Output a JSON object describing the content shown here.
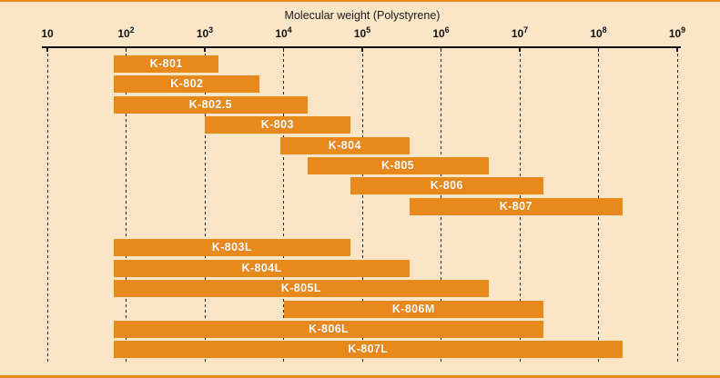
{
  "chart_data": {
    "type": "bar",
    "orientation": "horizontal-range",
    "title": "Molecular weight (Polystyrene)",
    "x_axis": {
      "scale": "log10",
      "min": 10,
      "max": 1000000000,
      "grid": "dashed-vertical",
      "ticks": [
        {
          "base": "10",
          "exp": "",
          "value": 10
        },
        {
          "base": "10",
          "exp": "2",
          "value": 100
        },
        {
          "base": "10",
          "exp": "3",
          "value": 1000
        },
        {
          "base": "10",
          "exp": "4",
          "value": 10000
        },
        {
          "base": "10",
          "exp": "5",
          "value": 100000
        },
        {
          "base": "10",
          "exp": "6",
          "value": 1000000
        },
        {
          "base": "10",
          "exp": "7",
          "value": 10000000
        },
        {
          "base": "10",
          "exp": "8",
          "value": 100000000
        },
        {
          "base": "10",
          "exp": "9",
          "value": 1000000000
        }
      ]
    },
    "bars": [
      {
        "label": "K-801",
        "group": "standard",
        "range_min": 70,
        "range_max": 1500
      },
      {
        "label": "K-802",
        "group": "standard",
        "range_min": 70,
        "range_max": 5000
      },
      {
        "label": "K-802.5",
        "group": "standard",
        "range_min": 70,
        "range_max": 20000
      },
      {
        "label": "K-803",
        "group": "standard",
        "range_min": 1000,
        "range_max": 70000
      },
      {
        "label": "K-804",
        "group": "standard",
        "range_min": 9000,
        "range_max": 400000
      },
      {
        "label": "K-805",
        "group": "standard",
        "range_min": 20000,
        "range_max": 4000000
      },
      {
        "label": "K-806",
        "group": "standard",
        "range_min": 70000,
        "range_max": 20000000
      },
      {
        "label": "K-807",
        "group": "standard",
        "range_min": 400000,
        "range_max": 200000000
      },
      {
        "label": "K-803L",
        "group": "linear",
        "range_min": 70,
        "range_max": 70000
      },
      {
        "label": "K-804L",
        "group": "linear",
        "range_min": 70,
        "range_max": 400000
      },
      {
        "label": "K-805L",
        "group": "linear",
        "range_min": 70,
        "range_max": 4000000
      },
      {
        "label": "K-806M",
        "group": "linear",
        "range_min": 10000,
        "range_max": 20000000
      },
      {
        "label": "K-806L",
        "group": "linear",
        "range_min": 70,
        "range_max": 20000000
      },
      {
        "label": "K-807L",
        "group": "linear",
        "range_min": 70,
        "range_max": 200000000
      }
    ],
    "colors": {
      "background": "#FAE5C7",
      "bar": "#E8891B",
      "bar_label_text": "#FFFFFF",
      "axis_text": "#111111",
      "rule": "#E8891B"
    }
  }
}
